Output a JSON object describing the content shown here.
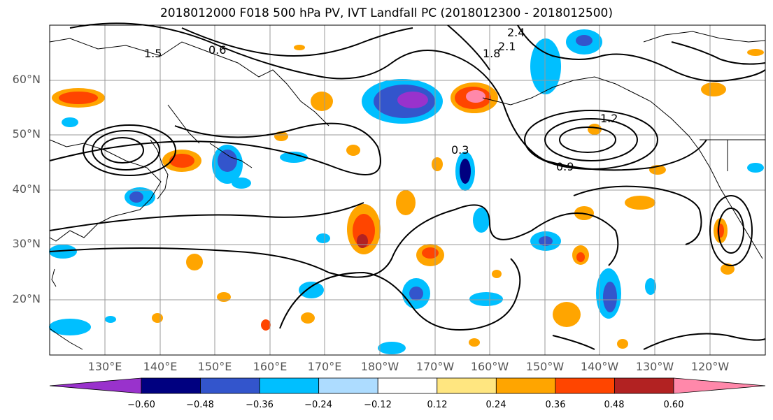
{
  "title": "2018012000 F018 500 hPa PV, IVT Landfall PC (2018012300 - 2018012500)",
  "map": {
    "lat_labels": [
      "60°N",
      "50°N",
      "40°N",
      "30°N",
      "20°N"
    ],
    "lon_labels": [
      "130°E",
      "140°E",
      "150°E",
      "160°E",
      "170°E",
      "180°W",
      "170°W",
      "160°W",
      "150°W",
      "140°W",
      "130°W",
      "120°W"
    ],
    "contour_labels": [
      "2.4",
      "2.1",
      "1.8",
      "1.5",
      "1.2",
      "0.9",
      "0.6",
      "0.3"
    ],
    "grid_color": "#999999",
    "coastline_color": "#000000"
  },
  "colorbar": {
    "colors": [
      "#9932CC",
      "#000080",
      "#3355CC",
      "#00BFFF",
      "#ADDCFF",
      "#FFFFFF",
      "#FFE680",
      "#FFA500",
      "#FF4500",
      "#B22222",
      "#FF88AA"
    ],
    "ticks": [
      "−0.60",
      "−0.48",
      "−0.36",
      "−0.24",
      "−0.12",
      "0.12",
      "0.24",
      "0.36",
      "0.48",
      "0.60"
    ]
  }
}
